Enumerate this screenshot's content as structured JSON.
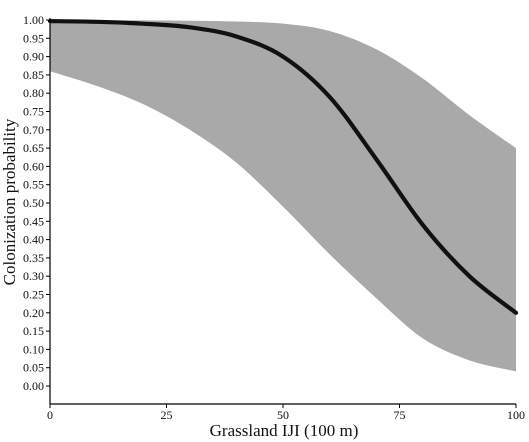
{
  "chart_data": {
    "type": "line",
    "title": "",
    "xlabel": "Grassland IJI (100 m)",
    "ylabel": "Colonization probability",
    "xlim": [
      0,
      100
    ],
    "ylim": [
      0,
      1
    ],
    "x_ticks": [
      "0",
      "25",
      "50",
      "75",
      "100"
    ],
    "y_ticks": [
      "0.00",
      "0.05",
      "0.10",
      "0.15",
      "0.20",
      "0.25",
      "0.30",
      "0.35",
      "0.40",
      "0.45",
      "0.50",
      "0.55",
      "0.60",
      "0.65",
      "0.70",
      "0.75",
      "0.80",
      "0.85",
      "0.90",
      "0.95",
      "1.00"
    ],
    "grid": false,
    "legend": "none",
    "series": [
      {
        "kind": "fitted-line",
        "color": "#111111",
        "x": [
          0,
          10,
          20,
          30,
          40,
          50,
          60,
          70,
          80,
          90,
          100
        ],
        "y": [
          0.997,
          0.995,
          0.99,
          0.98,
          0.955,
          0.9,
          0.79,
          0.62,
          0.44,
          0.3,
          0.2
        ]
      },
      {
        "kind": "confidence-band",
        "color": "#a9a9a9",
        "x": [
          0,
          10,
          20,
          30,
          40,
          50,
          60,
          70,
          80,
          90,
          100
        ],
        "upper": [
          0.999,
          0.999,
          0.999,
          0.998,
          0.996,
          0.99,
          0.97,
          0.92,
          0.84,
          0.74,
          0.65
        ],
        "lower": [
          0.86,
          0.82,
          0.77,
          0.7,
          0.61,
          0.49,
          0.36,
          0.24,
          0.13,
          0.07,
          0.04
        ]
      }
    ]
  }
}
